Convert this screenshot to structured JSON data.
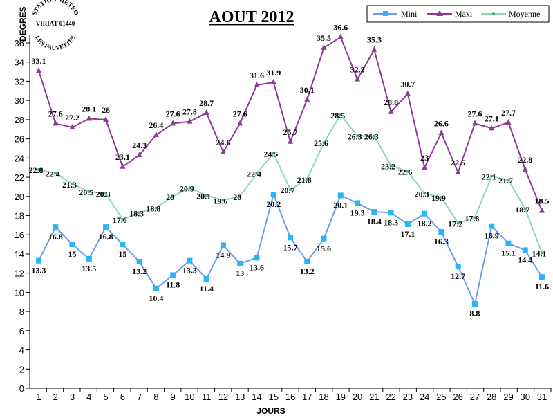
{
  "logo": {
    "top": "STATION METEO",
    "middle": "VIRIAT 01440",
    "bottom": "LES FAUVETTES"
  },
  "chart_data": {
    "type": "line",
    "title": "AOUT 2012",
    "xlabel": "JOURS",
    "ylabel": "DEGRES",
    "ylim": [
      0,
      36
    ],
    "yticks": [
      0,
      2,
      4,
      6,
      8,
      10,
      12,
      14,
      16,
      18,
      20,
      22,
      24,
      26,
      28,
      30,
      32,
      34,
      36
    ],
    "x": [
      1,
      2,
      3,
      4,
      5,
      6,
      7,
      8,
      9,
      10,
      11,
      12,
      13,
      14,
      15,
      16,
      17,
      18,
      19,
      20,
      21,
      22,
      23,
      24,
      25,
      26,
      27,
      28,
      29,
      30,
      31
    ],
    "legend_position": "top-right",
    "grid": false,
    "series": [
      {
        "name": "Mini",
        "color": "#6f9bef",
        "marker": "square",
        "values": [
          13.3,
          16.8,
          15,
          13.5,
          16.8,
          15,
          13.2,
          10.4,
          11.8,
          13.3,
          11.4,
          14.9,
          13,
          13.6,
          20.2,
          15.7,
          13.2,
          15.6,
          20.1,
          19.3,
          18.4,
          18.3,
          17.1,
          18.2,
          16.3,
          12.7,
          8.8,
          16.9,
          15.1,
          14.4,
          11.6
        ]
      },
      {
        "name": "Maxi",
        "color": "#8e3a97",
        "marker": "triangle",
        "values": [
          33.1,
          27.6,
          27.2,
          28.1,
          28,
          23.1,
          24.3,
          26.4,
          27.6,
          27.8,
          28.7,
          24.6,
          27.6,
          31.6,
          31.9,
          25.7,
          30.1,
          35.5,
          36.6,
          32.2,
          35.3,
          28.8,
          30.7,
          23,
          26.6,
          22.5,
          27.6,
          27.1,
          27.7,
          22.8,
          18.5
        ]
      },
      {
        "name": "Moyenne",
        "color": "#8fd8b0",
        "marker": "dot",
        "values": [
          22.8,
          22.4,
          21.3,
          20.5,
          20.3,
          17.6,
          18.3,
          18.8,
          20,
          20.9,
          20.1,
          19.6,
          20,
          22.4,
          24.5,
          20.7,
          21.8,
          25.6,
          28.5,
          26.3,
          26.3,
          23.2,
          22.6,
          20.3,
          19.9,
          17.2,
          17.8,
          22.1,
          21.7,
          18.7,
          14.1
        ]
      }
    ]
  }
}
